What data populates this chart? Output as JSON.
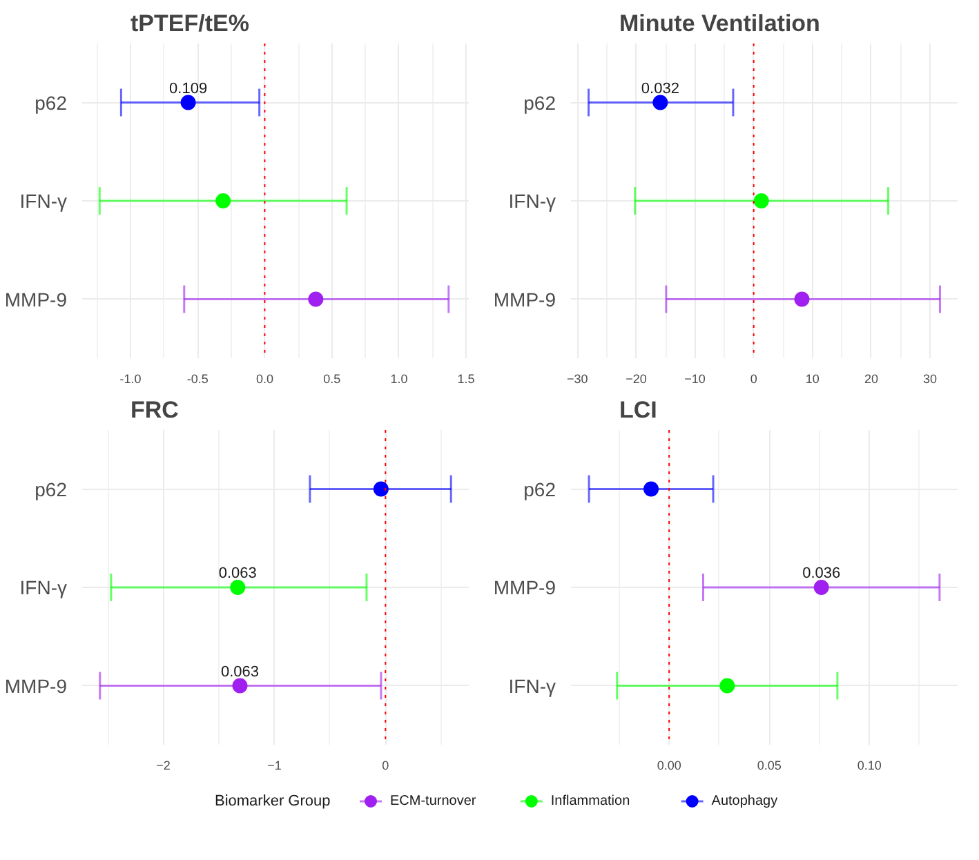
{
  "chart_data": [
    {
      "type": "scatter",
      "orientation": "horizontal",
      "title": "tPTEF/tE%",
      "categories": [
        "p62",
        "IFN-γ",
        "MMP-9"
      ],
      "xlim": [
        -1.36,
        1.52
      ],
      "xticks": [
        {
          "value": -1.0,
          "label": "-1.0"
        },
        {
          "value": -0.5,
          "label": "-0.5"
        },
        {
          "value": 0.0,
          "label": "0.0"
        },
        {
          "value": 0.5,
          "label": "0.5"
        },
        {
          "value": 1.0,
          "label": "1.0"
        },
        {
          "value": 1.5,
          "label": "1.5"
        }
      ],
      "grid": true,
      "marker": "circle",
      "legend": "bottom",
      "legend_title": "Biomarker Group",
      "ref_lines": [
        {
          "axis": "x",
          "value": 0,
          "color": "#ff0000",
          "line_style": "dotted"
        }
      ],
      "annotations": [
        {
          "text": "0.109",
          "x": -0.57,
          "y": "p62"
        }
      ],
      "series": [
        {
          "name": "ECM-turnover",
          "color": "#a020f0",
          "values": [
            null,
            null,
            0.38
          ],
          "errors": [
            null,
            null,
            [
              -0.6,
              1.37
            ]
          ]
        },
        {
          "name": "Inflammation",
          "color": "#00ff00",
          "values": [
            null,
            -0.31,
            null
          ],
          "errors": [
            null,
            [
              -1.23,
              0.61
            ],
            null
          ]
        },
        {
          "name": "Autophagy",
          "color": "#0000ff",
          "values": [
            -0.57,
            null,
            null
          ],
          "errors": [
            [
              -1.07,
              -0.04
            ],
            null,
            null
          ]
        }
      ]
    },
    {
      "type": "scatter",
      "orientation": "horizontal",
      "title": "Minute Ventilation",
      "categories": [
        "p62",
        "IFN-γ",
        "MMP-9"
      ],
      "xlim": [
        -31.1,
        34.7
      ],
      "xticks": [
        -30,
        -20,
        -10,
        0,
        10,
        20,
        30
      ],
      "grid": true,
      "marker": "circle",
      "ref_lines": [
        {
          "axis": "x",
          "value": 0,
          "color": "#ff0000",
          "line_style": "dotted"
        }
      ],
      "annotations": [
        {
          "text": "0.032",
          "x": -15.9,
          "y": "p62"
        }
      ],
      "series": [
        {
          "color": "#a020f0",
          "values": [
            null,
            null,
            8.2
          ],
          "errors": [
            null,
            null,
            [
              -14.9,
              31.7
            ]
          ]
        },
        {
          "color": "#00ff00",
          "values": [
            null,
            1.3,
            null
          ],
          "errors": [
            null,
            [
              -20.2,
              22.9
            ],
            null
          ]
        },
        {
          "color": "#0000ff",
          "values": [
            -15.9,
            null,
            null
          ],
          "errors": [
            [
              -28.1,
              -3.5
            ],
            null,
            null
          ]
        }
      ]
    },
    {
      "type": "scatter",
      "orientation": "horizontal",
      "title": "FRC",
      "categories": [
        "p62",
        "IFN-γ",
        "MMP-9"
      ],
      "xlim": [
        -2.73,
        0.75
      ],
      "xticks": [
        -2,
        -1,
        0
      ],
      "grid": true,
      "marker": "circle",
      "ref_lines": [
        {
          "axis": "x",
          "value": 0,
          "color": "#ff0000",
          "line_style": "dotted"
        }
      ],
      "annotations": [
        {
          "text": "0.063",
          "x": -1.33,
          "y": "IFN-γ"
        },
        {
          "text": "0.063",
          "x": -1.31,
          "y": "MMP-9"
        }
      ],
      "series": [
        {
          "color": "#a020f0",
          "values": [
            null,
            null,
            -1.31
          ],
          "errors": [
            null,
            null,
            [
              -2.57,
              -0.04
            ]
          ]
        },
        {
          "color": "#00ff00",
          "values": [
            null,
            -1.33,
            null
          ],
          "errors": [
            null,
            [
              -2.47,
              -0.17
            ],
            null
          ]
        },
        {
          "color": "#0000ff",
          "values": [
            -0.04,
            null,
            null
          ],
          "errors": [
            [
              -0.68,
              0.59
            ],
            null,
            null
          ]
        }
      ]
    },
    {
      "type": "scatter",
      "orientation": "horizontal",
      "title": "LCI",
      "categories": [
        "p62",
        "MMP-9",
        "IFN-γ"
      ],
      "xlim": [
        -0.049,
        0.144
      ],
      "xticks": [
        {
          "value": 0.0,
          "label": "0.00"
        },
        {
          "value": 0.05,
          "label": "0.05"
        },
        {
          "value": 0.1,
          "label": "0.10"
        }
      ],
      "grid": true,
      "marker": "circle",
      "ref_lines": [
        {
          "axis": "x",
          "value": 0,
          "color": "#ff0000",
          "line_style": "dotted"
        }
      ],
      "annotations": [
        {
          "text": "0.036",
          "x": 0.076,
          "y": "MMP-9"
        }
      ],
      "series": [
        {
          "color": "#a020f0",
          "values": [
            null,
            0.076,
            null
          ],
          "errors": [
            null,
            [
              0.017,
              0.135
            ],
            null
          ]
        },
        {
          "color": "#00ff00",
          "values": [
            null,
            null,
            0.029
          ],
          "errors": [
            null,
            null,
            [
              -0.026,
              0.084
            ]
          ]
        },
        {
          "color": "#0000ff",
          "values": [
            -0.009,
            null,
            null
          ],
          "errors": [
            [
              -0.04,
              0.022
            ],
            null,
            null
          ]
        }
      ]
    }
  ]
}
